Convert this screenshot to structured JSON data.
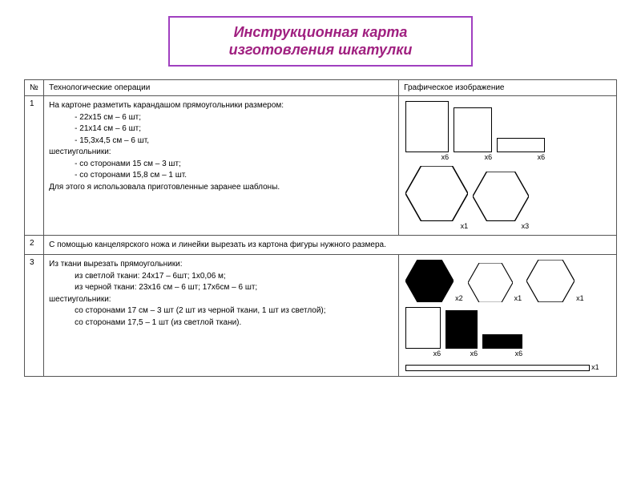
{
  "title": {
    "line1": "Инструкционная карта",
    "line2": "изготовления шкатулки",
    "border_color": "#a040c0",
    "text_color": "#a02080"
  },
  "headers": {
    "num": "№",
    "op": "Технологические операции",
    "img": "Графическое изображение"
  },
  "rows": [
    {
      "num": "1",
      "op_lines": [
        {
          "t": "На картоне разметить карандашом прямоугольники размером:",
          "indent": false
        },
        {
          "t": "- 22х15 см – 6 шт;",
          "indent": true
        },
        {
          "t": "- 21х14 см  – 6 шт;",
          "indent": true
        },
        {
          "t": "- 15,3х4,5 см – 6 шт,",
          "indent": true
        },
        {
          "t": "шестиугольники:",
          "indent": false
        },
        {
          "t": "- со сторонами 15 см – 3 шт;",
          "indent": true
        },
        {
          "t": "- со сторонами 15,8 см – 1 шт.",
          "indent": true
        },
        {
          "t": "Для этого я использовала приготовленные заранее шаблоны.",
          "indent": false
        }
      ],
      "graphic": {
        "items": [
          {
            "type": "rect",
            "w": 54,
            "h": 64,
            "fill": false,
            "label": "х6",
            "lblpos": "below"
          },
          {
            "type": "rect",
            "w": 48,
            "h": 56,
            "fill": false,
            "label": "х6",
            "lblpos": "below"
          },
          {
            "type": "rect",
            "w": 60,
            "h": 18,
            "fill": false,
            "label": "х6",
            "lblpos": "below"
          },
          {
            "type": "hex",
            "size": 78,
            "fill": false,
            "label": "х1",
            "lblpos": "below"
          },
          {
            "type": "hex",
            "size": 70,
            "fill": false,
            "label": "х3",
            "lblpos": "below"
          }
        ]
      }
    },
    {
      "num": "2",
      "op_lines": [
        {
          "t": "С помощью канцелярского ножа и линейки вырезать из картона фигуры нужного размера.",
          "indent": false
        }
      ],
      "graphic": null
    },
    {
      "num": "3",
      "op_lines": [
        {
          "t": "Из ткани вырезать прямоугольники:",
          "indent": false
        },
        {
          "t": "из светлой ткани: 24х17 – 6шт; 1х0,06 м;",
          "indent": true
        },
        {
          "t": "из черной ткани: 23х16 см – 6 шт; 17х6см – 6 шт;",
          "indent": true
        },
        {
          "t": "шестиугольники:",
          "indent": false
        },
        {
          "t": "со сторонами 17 см – 3 шт (2 шт из черной ткани, 1 шт из светлой);",
          "indent": true
        },
        {
          "t": "со сторонами 17,5 – 1 шт (из светлой ткани).",
          "indent": true
        }
      ],
      "graphic": {
        "items": [
          {
            "type": "hex",
            "size": 60,
            "fill": true,
            "label": "х2",
            "lblpos": "right"
          },
          {
            "type": "hex",
            "size": 56,
            "fill": false,
            "label": "х1",
            "lblpos": "right"
          },
          {
            "type": "hex",
            "size": 60,
            "fill": false,
            "label": "х1",
            "lblpos": "right"
          },
          {
            "type": "rect",
            "w": 44,
            "h": 52,
            "fill": false,
            "label": "х6",
            "lblpos": "below"
          },
          {
            "type": "rect",
            "w": 40,
            "h": 48,
            "fill": true,
            "label": "х6",
            "lblpos": "below"
          },
          {
            "type": "rect",
            "w": 50,
            "h": 18,
            "fill": true,
            "label": "х6",
            "lblpos": "below"
          },
          {
            "type": "longbar",
            "label": "х1",
            "lblpos": "right"
          }
        ]
      }
    }
  ]
}
